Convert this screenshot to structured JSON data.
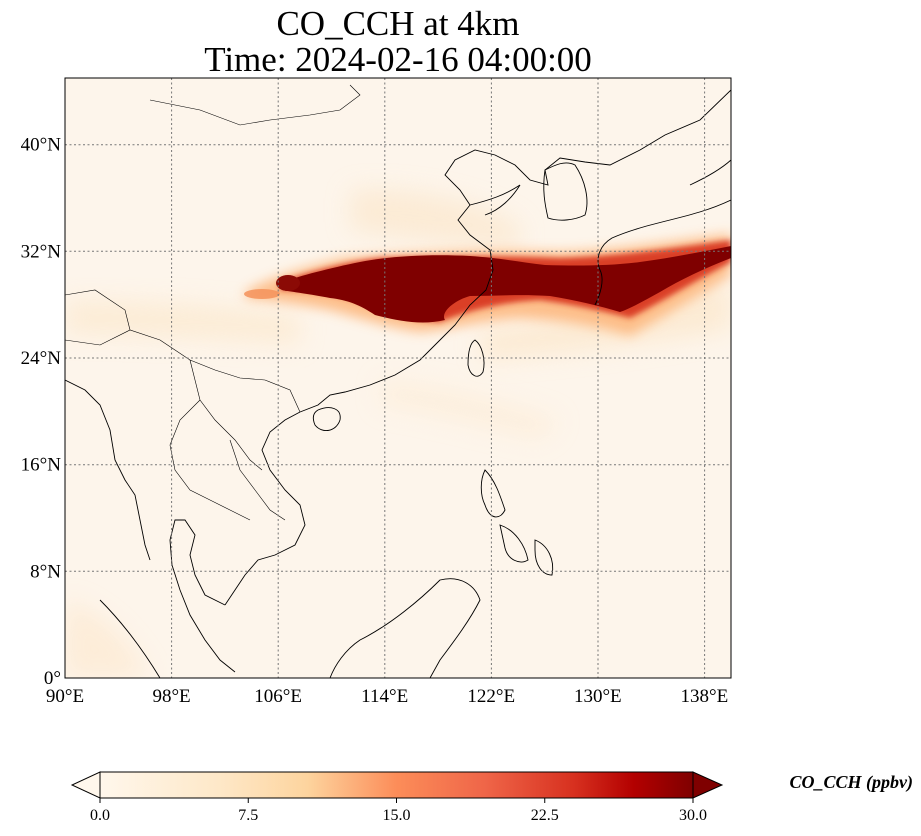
{
  "title": {
    "line1": "CO_CCH at 4km",
    "line2": "Time: 2024-02-16 04:00:00"
  },
  "map": {
    "projection": "PlateCarree",
    "extent": {
      "lon": [
        90,
        140
      ],
      "lat": [
        0,
        45
      ]
    },
    "background_color": "#fdf5eb",
    "gridlines": "dotted",
    "coastlines": true,
    "borders": true,
    "x_ticks": [
      {
        "value": 90,
        "label": "90°E"
      },
      {
        "value": 98,
        "label": "98°E"
      },
      {
        "value": 106,
        "label": "106°E"
      },
      {
        "value": 114,
        "label": "114°E"
      },
      {
        "value": 122,
        "label": "122°E"
      },
      {
        "value": 130,
        "label": "130°E"
      },
      {
        "value": 138,
        "label": "138°E"
      }
    ],
    "y_ticks": [
      {
        "value": 0,
        "label": "0°"
      },
      {
        "value": 8,
        "label": "8°N"
      },
      {
        "value": 16,
        "label": "16°N"
      },
      {
        "value": 24,
        "label": "24°N"
      },
      {
        "value": 32,
        "label": "32°N"
      },
      {
        "value": 40,
        "label": "40°N"
      }
    ]
  },
  "plume": {
    "description_hidden": false,
    "core_lat_band": [
      27,
      31
    ],
    "core_lon_band": [
      107,
      136
    ]
  },
  "colorbar": {
    "title": "CO_CCH (ppbv)",
    "cmap": "OrRd",
    "min": 0.0,
    "max": 30.0,
    "extend": "both",
    "ticks": [
      "0.0",
      "7.5",
      "15.0",
      "22.5",
      "30.0"
    ]
  }
}
